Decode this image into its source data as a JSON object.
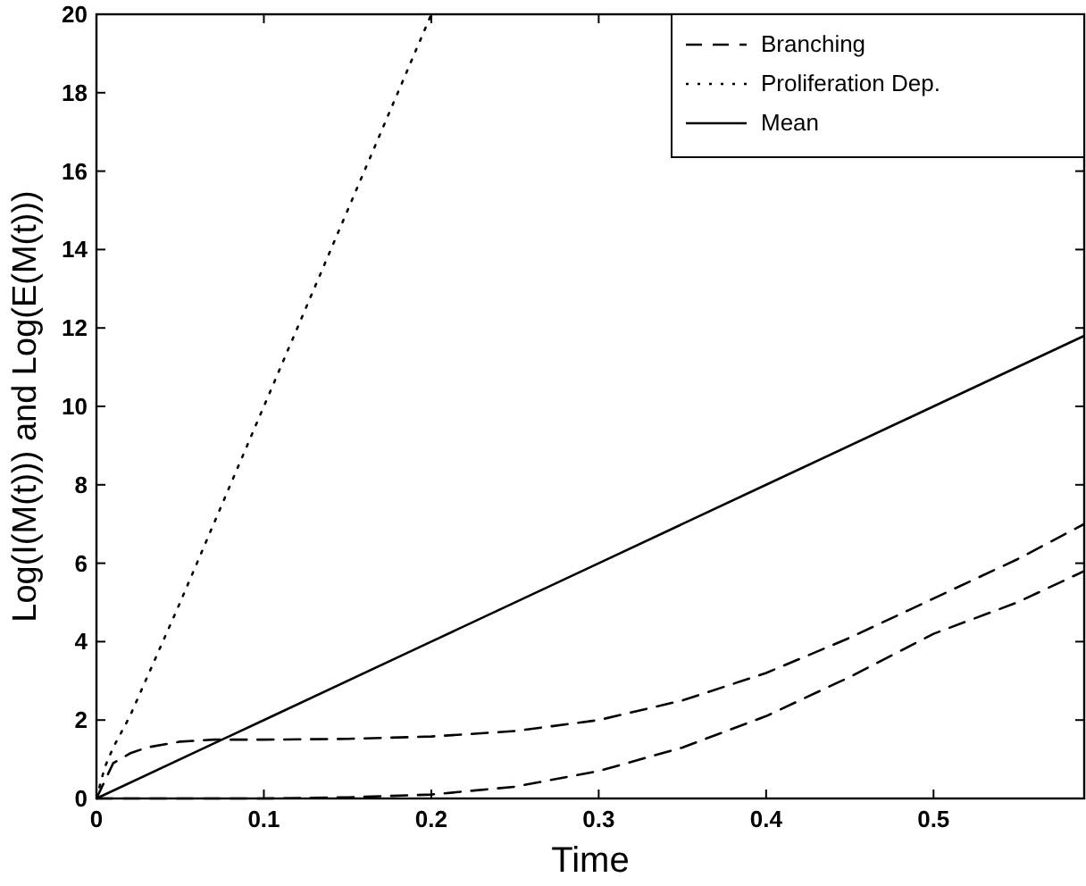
{
  "chart_data": {
    "type": "line",
    "xlabel": "Time",
    "ylabel": "Log(I(M(t))) and Log(E(M(t)))",
    "xlim": [
      0,
      0.59
    ],
    "ylim": [
      0,
      20
    ],
    "xticks": [
      0,
      0.1,
      0.2,
      0.3,
      0.4,
      0.5
    ],
    "yticks": [
      0,
      2,
      4,
      6,
      8,
      10,
      12,
      14,
      16,
      18,
      20
    ],
    "grid": false,
    "legend": "top right",
    "marker": "none",
    "series": [
      {
        "name": "Branching",
        "color": "#000000",
        "line_style": "dashed",
        "x": [
          0,
          0.01,
          0.02,
          0.03,
          0.05,
          0.07,
          0.1,
          0.15,
          0.2,
          0.25,
          0.3,
          0.35,
          0.4,
          0.45,
          0.5,
          0.55,
          0.59
        ],
        "values": [
          0,
          0.9,
          1.15,
          1.3,
          1.45,
          1.5,
          1.5,
          1.52,
          1.58,
          1.72,
          2.0,
          2.5,
          3.2,
          4.1,
          5.1,
          6.1,
          7.0
        ]
      },
      {
        "color": "#000000",
        "line_style": "dashed",
        "x": [
          0,
          0.05,
          0.1,
          0.15,
          0.2,
          0.25,
          0.3,
          0.35,
          0.4,
          0.45,
          0.5,
          0.55,
          0.59
        ],
        "values": [
          0,
          0,
          0,
          0.03,
          0.1,
          0.3,
          0.7,
          1.3,
          2.1,
          3.1,
          4.2,
          5.0,
          5.8
        ]
      },
      {
        "name": "Proliferation Dep.",
        "color": "#000000",
        "line_style": "dotted",
        "x": [
          0,
          0.005,
          0.01,
          0.02,
          0.05,
          0.1,
          0.15,
          0.2
        ],
        "values": [
          0,
          0.8,
          1.3,
          2.1,
          5.0,
          10,
          15,
          20
        ]
      },
      {
        "name": "Mean",
        "color": "#000000",
        "line_style": "solid",
        "x": [
          0,
          0.1,
          0.2,
          0.3,
          0.4,
          0.5,
          0.59
        ],
        "values": [
          0,
          2,
          4,
          6,
          8,
          10,
          11.8
        ]
      }
    ]
  }
}
